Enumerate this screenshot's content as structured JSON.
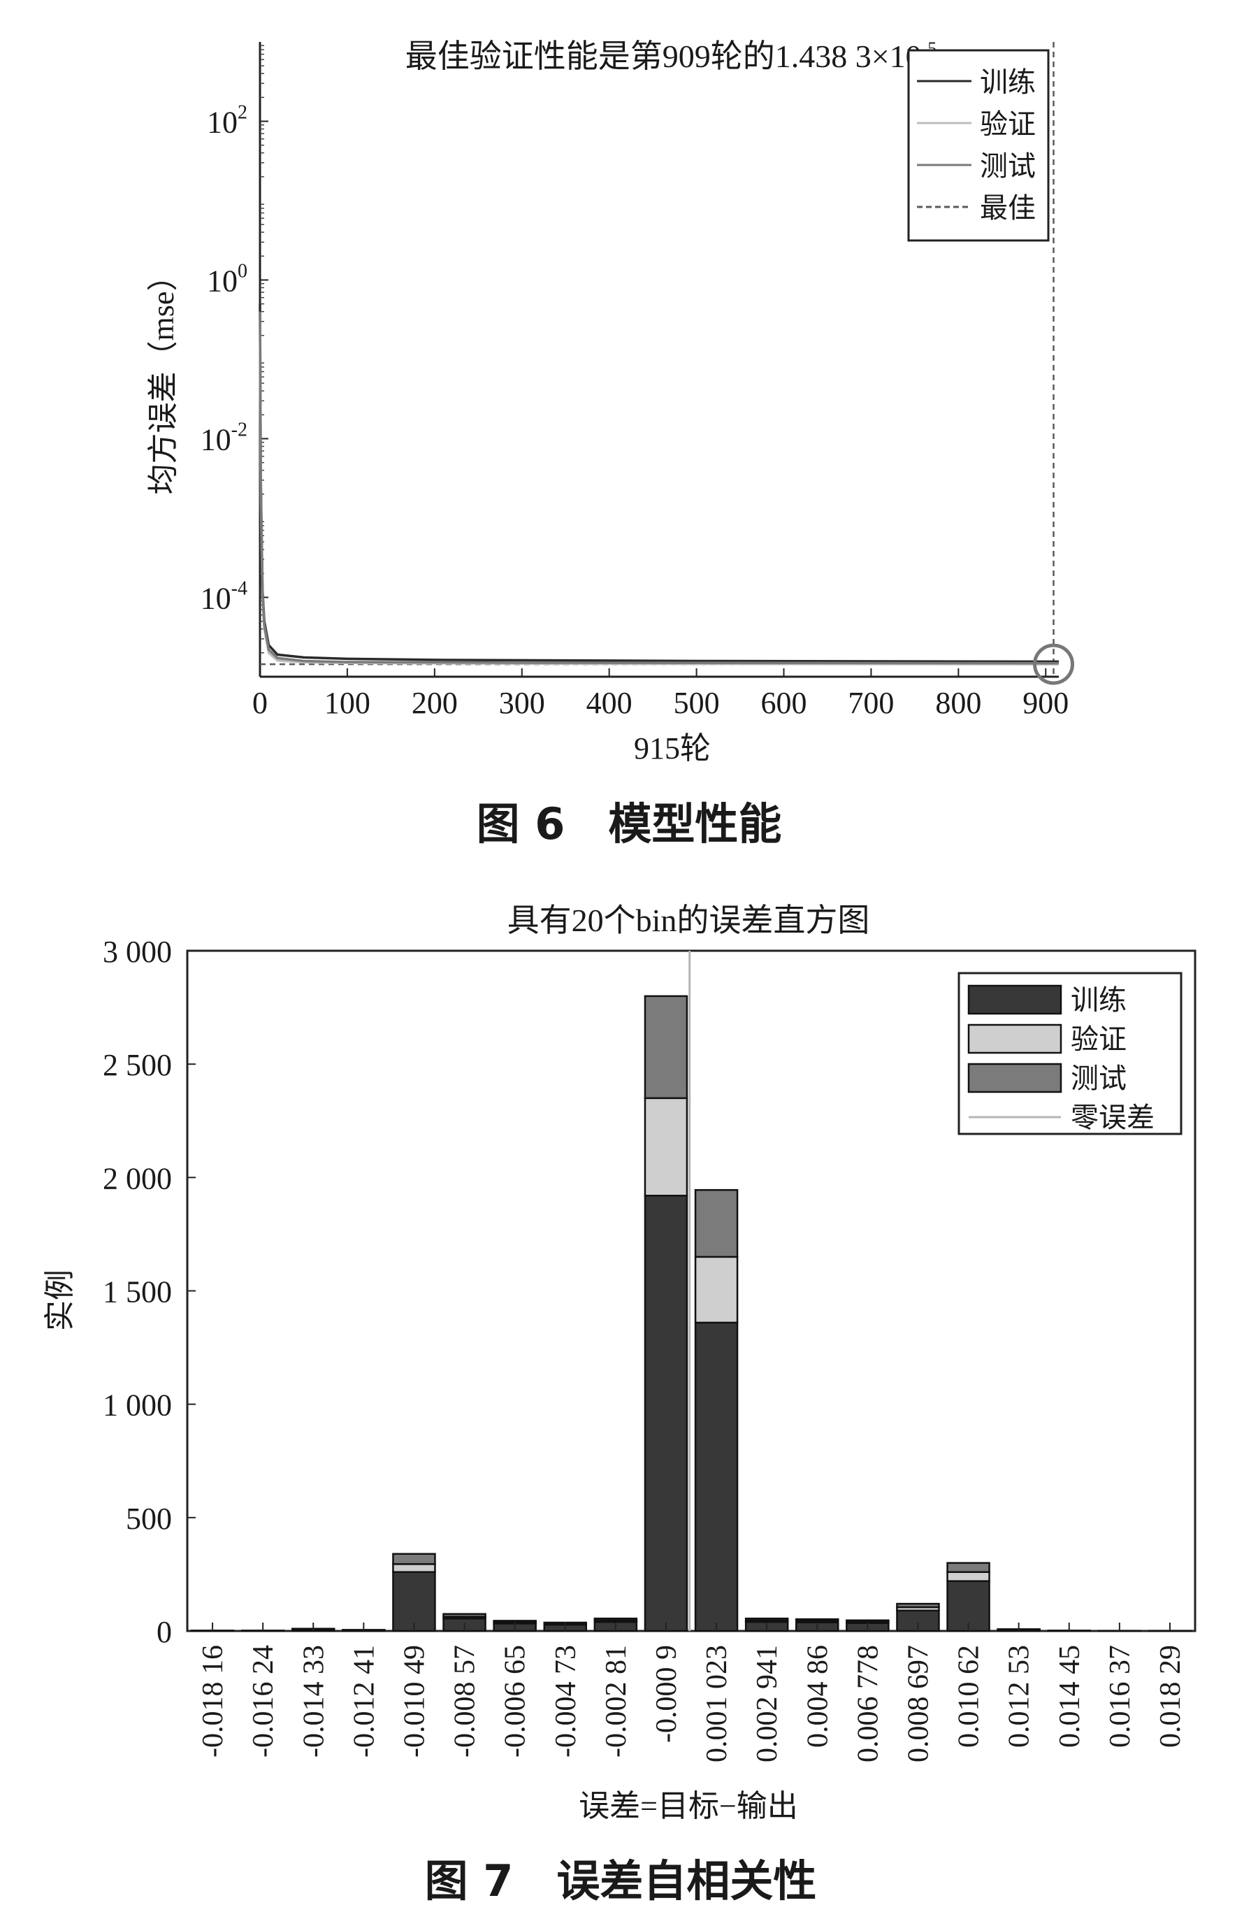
{
  "chart_data": [
    {
      "type": "line",
      "title": "最佳验证性能是第909轮的1.438 3×10",
      "title_exponent": "-5",
      "xlabel": "915轮",
      "ylabel": "均方误差（mse）",
      "caption": "图 6　模型性能",
      "yscale": "log",
      "xlim": [
        0,
        915
      ],
      "ylim_exponent": [
        -5,
        3
      ],
      "x_ticks": [
        "0",
        "100",
        "200",
        "300",
        "400",
        "500",
        "600",
        "700",
        "800",
        "900"
      ],
      "y_ticks": [
        {
          "base": "10",
          "exp": "2",
          "value": 100
        },
        {
          "base": "10",
          "exp": "0",
          "value": 1
        },
        {
          "base": "10",
          "exp": "-2",
          "value": 0.01
        },
        {
          "base": "10",
          "exp": "-4",
          "value": 0.0001
        }
      ],
      "series": [
        {
          "name": "训练",
          "color": "#2a2a2a",
          "style": "solid",
          "points": [
            [
              0,
              0.5
            ],
            [
              1,
              0.003
            ],
            [
              2,
              0.0005
            ],
            [
              3,
              0.00012
            ],
            [
              5,
              5e-05
            ],
            [
              10,
              2.5e-05
            ],
            [
              20,
              1.9e-05
            ],
            [
              50,
              1.75e-05
            ],
            [
              100,
              1.68e-05
            ],
            [
              200,
              1.63e-05
            ],
            [
              500,
              1.58e-05
            ],
            [
              909,
              1.55e-05
            ],
            [
              915,
              1.55e-05
            ]
          ]
        },
        {
          "name": "验证",
          "color": "#bdbdbd",
          "style": "solid",
          "points": [
            [
              0,
              0.3
            ],
            [
              1,
              0.002
            ],
            [
              2,
              0.0004
            ],
            [
              3,
              0.0001
            ],
            [
              5,
              4e-05
            ],
            [
              10,
              2e-05
            ],
            [
              20,
              1.6e-05
            ],
            [
              50,
              1.52e-05
            ],
            [
              100,
              1.49e-05
            ],
            [
              300,
              1.46e-05
            ],
            [
              909,
              1.4383e-05
            ],
            [
              915,
              1.44e-05
            ]
          ]
        },
        {
          "name": "测试",
          "color": "#7a7a7a",
          "style": "solid",
          "points": [
            [
              0,
              0.4
            ],
            [
              1,
              0.0025
            ],
            [
              2,
              0.00045
            ],
            [
              3,
              0.00011
            ],
            [
              5,
              4.5e-05
            ],
            [
              10,
              2.2e-05
            ],
            [
              20,
              1.72e-05
            ],
            [
              50,
              1.58e-05
            ],
            [
              100,
              1.53e-05
            ],
            [
              300,
              1.5e-05
            ],
            [
              909,
              1.48e-05
            ],
            [
              915,
              1.48e-05
            ]
          ]
        },
        {
          "name": "最佳",
          "color": "#5a5a5a",
          "style": "dashed",
          "x_value": 909,
          "y_value": 1.4383e-05
        }
      ],
      "legend_position": "top-right"
    },
    {
      "type": "bar",
      "stacked": true,
      "title": "具有20个bin的误差直方图",
      "xlabel": "误差=目标−输出",
      "ylabel": "实例",
      "caption": "图 7　误差自相关性",
      "ylim": [
        0,
        3000
      ],
      "y_ticks": [
        "0",
        "500",
        "1 000",
        "1 500",
        "2 000",
        "2 500",
        "3 000"
      ],
      "categories": [
        "-0.018 16",
        "-0.016 24",
        "-0.014 33",
        "-0.012 41",
        "-0.010 49",
        "-0.008 57",
        "-0.006 65",
        "-0.004 73",
        "-0.002 81",
        "-0.000 9",
        "0.001 023",
        "0.002 941",
        "0.004 86",
        "0.006 778",
        "0.008 697",
        "0.010 62",
        "0.012 53",
        "0.014 45",
        "0.016 37",
        "0.018 29"
      ],
      "series": [
        {
          "name": "训练",
          "color": "#383838",
          "values": [
            2,
            2,
            8,
            4,
            260,
            55,
            33,
            28,
            40,
            1920,
            1360,
            40,
            38,
            35,
            90,
            220,
            6,
            2,
            1,
            1
          ]
        },
        {
          "name": "验证",
          "color": "#cfcfcf",
          "values": [
            0,
            0,
            1,
            1,
            35,
            8,
            6,
            4,
            7,
            430,
            290,
            7,
            7,
            6,
            15,
            40,
            1,
            0,
            0,
            0
          ]
        },
        {
          "name": "测试",
          "color": "#7b7b7b",
          "values": [
            0,
            0,
            1,
            0,
            45,
            12,
            6,
            5,
            8,
            450,
            295,
            8,
            7,
            6,
            15,
            40,
            1,
            0,
            0,
            0
          ]
        }
      ],
      "reference_line": {
        "name": "零误差",
        "color": "#b5b5b5",
        "x_value": 0
      },
      "legend_position": "top-right"
    }
  ]
}
